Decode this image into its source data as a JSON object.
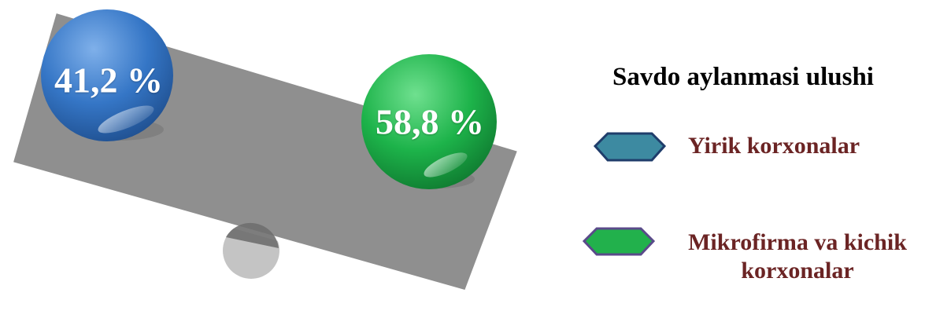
{
  "chart_data": {
    "type": "pie",
    "title": "Savdo aylanmasi ulushi",
    "series": [
      {
        "name": "Yirik korxonalar",
        "value": 41.2,
        "label": "41,2 %",
        "color": "#3576c6"
      },
      {
        "name": "Mikrofirma va kichik korxonalar",
        "value": 58.8,
        "label": "58,8 %",
        "color": "#1db34a"
      }
    ]
  },
  "legend": {
    "items": [
      {
        "label": "Yirik korxonalar",
        "swatch_color": "#3d8aa1"
      },
      {
        "label": "Mikrofirma va kichik korxonalar",
        "swatch_color": "#22b14c"
      }
    ]
  },
  "colors": {
    "plank": "#8f8f8f",
    "pivot": "#c4c4c4",
    "legend_text": "#6b2424"
  }
}
